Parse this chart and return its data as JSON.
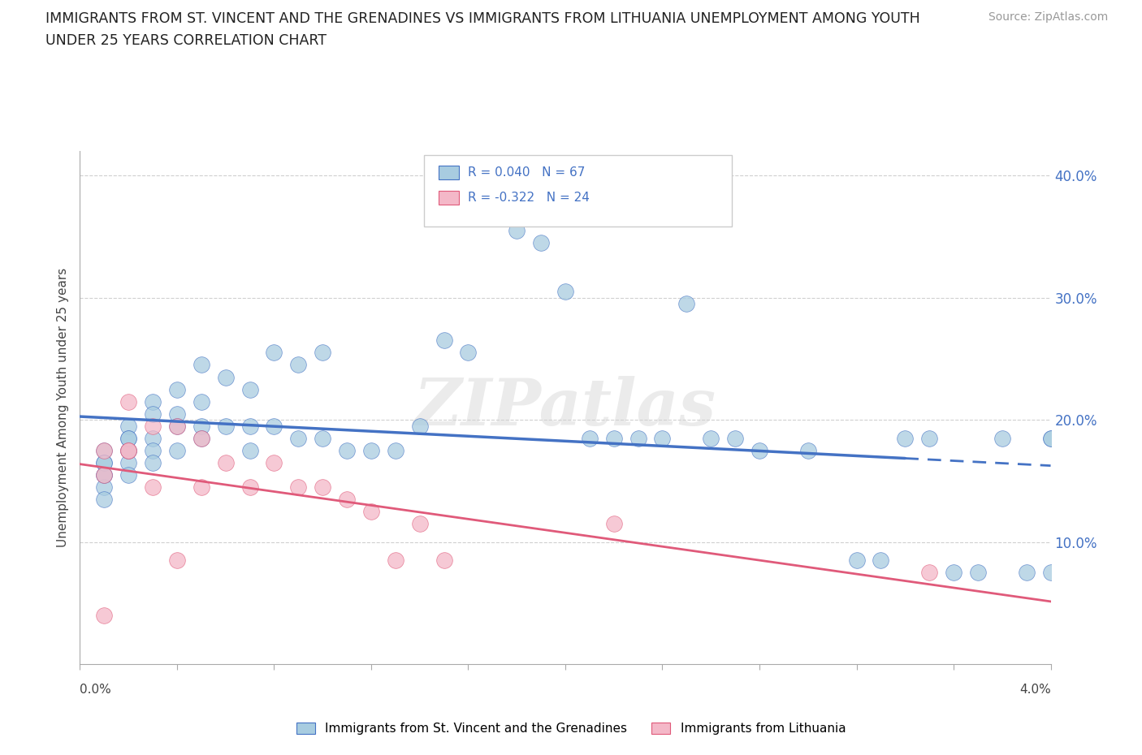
{
  "title_line1": "IMMIGRANTS FROM ST. VINCENT AND THE GRENADINES VS IMMIGRANTS FROM LITHUANIA UNEMPLOYMENT AMONG YOUTH",
  "title_line2": "UNDER 25 YEARS CORRELATION CHART",
  "source": "Source: ZipAtlas.com",
  "ylabel": "Unemployment Among Youth under 25 years",
  "xlim": [
    0.0,
    0.04
  ],
  "ylim": [
    0.0,
    0.42
  ],
  "yticks": [
    0.1,
    0.2,
    0.3,
    0.4
  ],
  "ytick_labels": [
    "10.0%",
    "20.0%",
    "30.0%",
    "40.0%"
  ],
  "legend1_label": "Immigrants from St. Vincent and the Grenadines",
  "legend2_label": "Immigrants from Lithuania",
  "R1": "0.040",
  "N1": "67",
  "R2": "-0.322",
  "N2": "24",
  "color_blue": "#a8cce0",
  "color_pink": "#f4b8c8",
  "color_blue_line": "#4472c4",
  "color_pink_line": "#e05a7a",
  "color_text_blue": "#4472c4",
  "color_grid": "#d0d0d0",
  "watermark": "ZIPatlas",
  "blue_x": [
    0.001,
    0.001,
    0.001,
    0.001,
    0.001,
    0.001,
    0.001,
    0.002,
    0.002,
    0.002,
    0.002,
    0.002,
    0.002,
    0.002,
    0.003,
    0.003,
    0.003,
    0.003,
    0.003,
    0.004,
    0.004,
    0.004,
    0.004,
    0.005,
    0.005,
    0.005,
    0.005,
    0.006,
    0.006,
    0.007,
    0.007,
    0.007,
    0.008,
    0.008,
    0.009,
    0.009,
    0.01,
    0.01,
    0.011,
    0.012,
    0.013,
    0.014,
    0.015,
    0.016,
    0.018,
    0.019,
    0.02,
    0.021,
    0.022,
    0.023,
    0.024,
    0.025,
    0.026,
    0.027,
    0.028,
    0.03,
    0.032,
    0.033,
    0.034,
    0.035,
    0.036,
    0.037,
    0.038,
    0.039,
    0.04,
    0.04,
    0.04
  ],
  "blue_y": [
    0.175,
    0.165,
    0.155,
    0.145,
    0.135,
    0.165,
    0.155,
    0.195,
    0.185,
    0.175,
    0.165,
    0.155,
    0.175,
    0.185,
    0.215,
    0.205,
    0.185,
    0.175,
    0.165,
    0.225,
    0.205,
    0.195,
    0.175,
    0.245,
    0.215,
    0.195,
    0.185,
    0.235,
    0.195,
    0.225,
    0.195,
    0.175,
    0.255,
    0.195,
    0.245,
    0.185,
    0.255,
    0.185,
    0.175,
    0.175,
    0.175,
    0.195,
    0.265,
    0.255,
    0.355,
    0.345,
    0.305,
    0.185,
    0.185,
    0.185,
    0.185,
    0.295,
    0.185,
    0.185,
    0.175,
    0.175,
    0.085,
    0.085,
    0.185,
    0.185,
    0.075,
    0.075,
    0.185,
    0.075,
    0.075,
    0.185,
    0.185
  ],
  "pink_x": [
    0.001,
    0.001,
    0.001,
    0.002,
    0.002,
    0.002,
    0.003,
    0.003,
    0.004,
    0.004,
    0.005,
    0.005,
    0.006,
    0.007,
    0.008,
    0.009,
    0.01,
    0.011,
    0.012,
    0.013,
    0.014,
    0.015,
    0.022,
    0.035
  ],
  "pink_y": [
    0.175,
    0.155,
    0.04,
    0.215,
    0.175,
    0.175,
    0.195,
    0.145,
    0.195,
    0.085,
    0.185,
    0.145,
    0.165,
    0.145,
    0.165,
    0.145,
    0.145,
    0.135,
    0.125,
    0.085,
    0.115,
    0.085,
    0.115,
    0.075
  ]
}
